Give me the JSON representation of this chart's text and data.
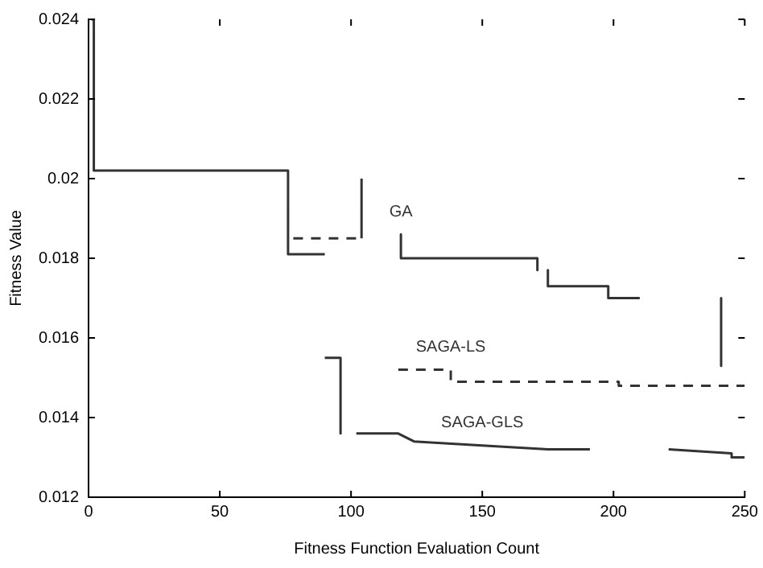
{
  "chart_data": {
    "type": "line",
    "xlabel": "Fitness Function Evaluation Count",
    "ylabel": "Fitness Value",
    "xlim": [
      0,
      250
    ],
    "xticks": [
      0,
      50,
      100,
      150,
      200,
      250
    ],
    "ylim": [
      0.012,
      0.024
    ],
    "yticks": [
      0.012,
      0.014,
      0.016,
      0.018,
      0.02,
      0.022,
      0.024
    ],
    "legend": false,
    "marker": "none",
    "series": [
      {
        "name": "GA",
        "color": "#333333",
        "line_style": "solid",
        "x": [
          1,
          2,
          2,
          76,
          76,
          90,
          null,
          104,
          104,
          null,
          119,
          119,
          171,
          171,
          null,
          175,
          175,
          198,
          198,
          210,
          null,
          241,
          241
        ],
        "values": [
          0.024,
          0.024,
          0.0202,
          0.0202,
          0.0181,
          0.0181,
          null,
          0.0185,
          0.02,
          null,
          0.0186,
          0.018,
          0.018,
          0.0177,
          null,
          0.0177,
          0.0173,
          0.0173,
          0.017,
          0.017,
          null,
          0.017,
          0.0153
        ]
      },
      {
        "name": "SAGA-LS",
        "color": "#333333",
        "line_style": "dashed",
        "x": [
          78,
          102,
          null,
          118,
          138,
          138,
          202,
          202,
          250
        ],
        "values": [
          0.0185,
          0.0185,
          null,
          0.0152,
          0.0152,
          0.0149,
          0.0149,
          0.0148,
          0.0148
        ]
      },
      {
        "name": "SAGA-GLS",
        "color": "#333333",
        "line_style": "solid",
        "x": [
          90,
          96,
          96,
          null,
          102,
          118,
          124,
          150,
          175,
          191,
          null,
          221,
          245,
          245,
          250
        ],
        "values": [
          0.0155,
          0.0155,
          0.0136,
          null,
          0.0136,
          0.0136,
          0.0134,
          0.0133,
          0.0132,
          0.0132,
          null,
          0.0132,
          0.0131,
          0.013,
          0.013
        ]
      }
    ]
  }
}
